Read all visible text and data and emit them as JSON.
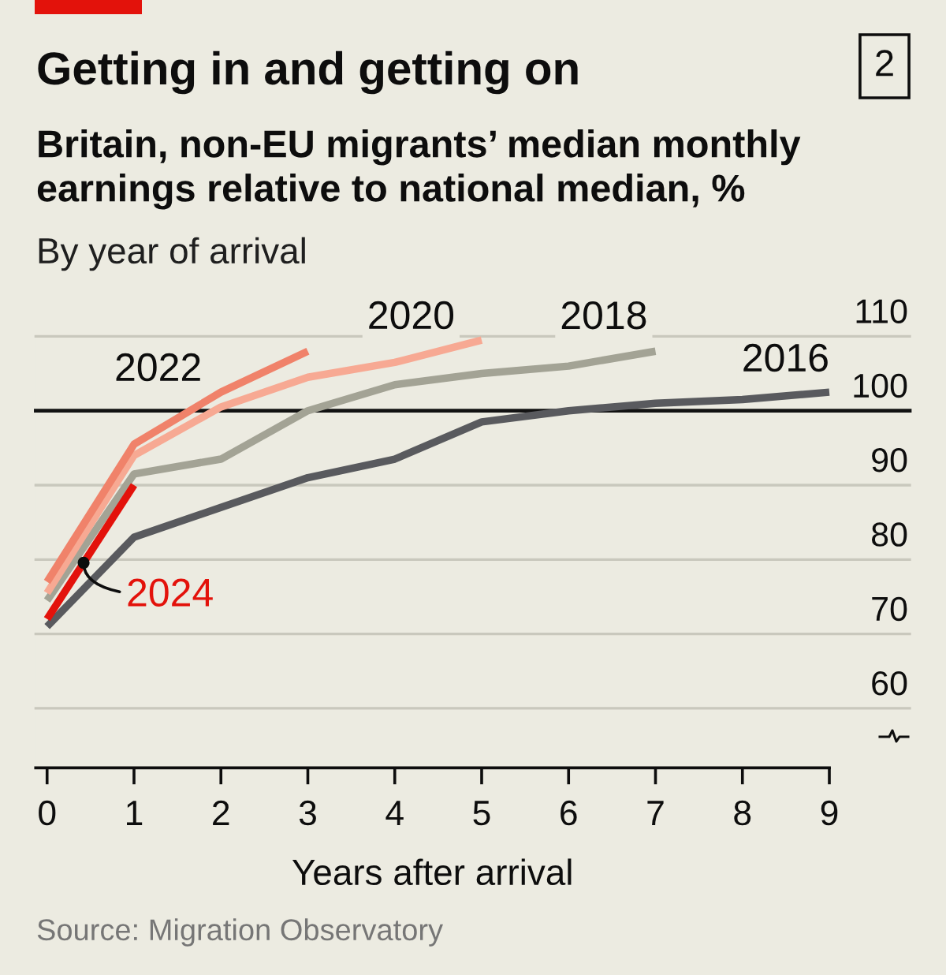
{
  "chart_data": {
    "type": "line",
    "title": "Getting in and getting on",
    "subtitle": "Britain, non-EU migrants’ median monthly earnings relative to national median, %",
    "xlabel": "Years after arrival",
    "annotations": [
      "2",
      "By year of arrival",
      "Source: Migration Observatory"
    ],
    "xlim": [
      -0.13,
      9
    ],
    "xticks": [
      0,
      1,
      2,
      3,
      4,
      5,
      6,
      7,
      8,
      9
    ],
    "ylim": [
      52,
      110
    ],
    "yticks": [
      60,
      70,
      80,
      90,
      100,
      110
    ],
    "grid": "y",
    "line_style": "solid",
    "ref_lines": [
      {
        "axis": "y",
        "value": 100,
        "color": "#121212"
      }
    ],
    "series": [
      {
        "name": "2016",
        "color": "#595a5e",
        "x": [
          0,
          1,
          2,
          3,
          4,
          5,
          6,
          7,
          8,
          9
        ],
        "values": [
          71,
          83,
          87,
          91,
          93.5,
          98.5,
          100,
          101,
          101.5,
          102.5
        ]
      },
      {
        "name": "2018",
        "color": "#a3a395",
        "x": [
          0,
          1,
          2,
          3,
          4,
          5,
          6,
          7
        ],
        "values": [
          74.5,
          91.5,
          93.5,
          100,
          103.5,
          105,
          106,
          108
        ]
      },
      {
        "name": "2020",
        "color": "#f7a993",
        "x": [
          0,
          1,
          2,
          3,
          4,
          5
        ],
        "values": [
          75.5,
          94,
          100.5,
          104.5,
          106.5,
          109.5
        ]
      },
      {
        "name": "2022",
        "color": "#f0826a",
        "x": [
          0,
          1,
          2,
          3
        ],
        "values": [
          77,
          95.5,
          102.5,
          108
        ]
      },
      {
        "name": "2024",
        "color": "#e3120b",
        "x": [
          0,
          1
        ],
        "values": [
          72,
          90
        ]
      }
    ]
  }
}
